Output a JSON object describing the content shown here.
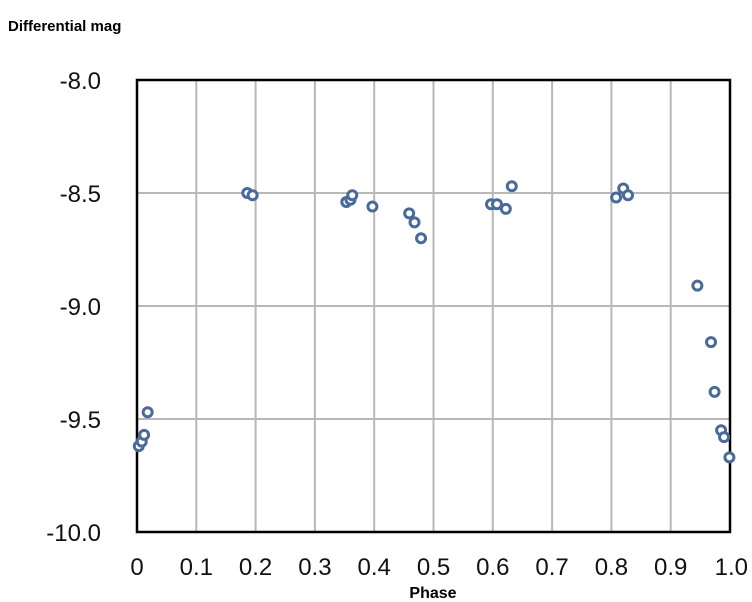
{
  "chart_data": {
    "type": "scatter",
    "title": "",
    "xlabel": "Phase",
    "ylabel": "Differential mag",
    "xlim": [
      0,
      1.0
    ],
    "ylim": [
      -10.0,
      -8.0
    ],
    "y_inverted": true,
    "grid": true,
    "x_ticks": [
      0,
      0.1,
      0.2,
      0.3,
      0.4,
      0.5,
      0.6,
      0.7,
      0.8,
      0.9,
      1.0
    ],
    "x_tick_labels": [
      "0",
      "0.1",
      "0.2",
      "0.3",
      "0.4",
      "0.5",
      "0.6",
      "0.7",
      "0.8",
      "0.9",
      "1.0"
    ],
    "y_ticks": [
      -8.0,
      -8.5,
      -9.0,
      -9.5,
      -10.0
    ],
    "y_tick_labels": [
      "-8.0",
      "-8.5",
      "-9.0",
      "-9.5",
      "-10.0"
    ],
    "marker_color": "#4a6a9a",
    "points": [
      {
        "x": 0.003,
        "y": -9.62
      },
      {
        "x": 0.008,
        "y": -9.6
      },
      {
        "x": 0.012,
        "y": -9.57
      },
      {
        "x": 0.018,
        "y": -9.47
      },
      {
        "x": 0.186,
        "y": -8.5
      },
      {
        "x": 0.195,
        "y": -8.51
      },
      {
        "x": 0.353,
        "y": -8.54
      },
      {
        "x": 0.36,
        "y": -8.53
      },
      {
        "x": 0.363,
        "y": -8.51
      },
      {
        "x": 0.397,
        "y": -8.56
      },
      {
        "x": 0.459,
        "y": -8.59
      },
      {
        "x": 0.468,
        "y": -8.63
      },
      {
        "x": 0.479,
        "y": -8.7
      },
      {
        "x": 0.597,
        "y": -8.55
      },
      {
        "x": 0.607,
        "y": -8.55
      },
      {
        "x": 0.622,
        "y": -8.57
      },
      {
        "x": 0.632,
        "y": -8.47
      },
      {
        "x": 0.808,
        "y": -8.52
      },
      {
        "x": 0.82,
        "y": -8.48
      },
      {
        "x": 0.828,
        "y": -8.51
      },
      {
        "x": 0.945,
        "y": -8.91
      },
      {
        "x": 0.968,
        "y": -9.16
      },
      {
        "x": 0.974,
        "y": -9.38
      },
      {
        "x": 0.985,
        "y": -9.55
      },
      {
        "x": 0.99,
        "y": -9.58
      },
      {
        "x": 0.999,
        "y": -9.67
      }
    ]
  }
}
